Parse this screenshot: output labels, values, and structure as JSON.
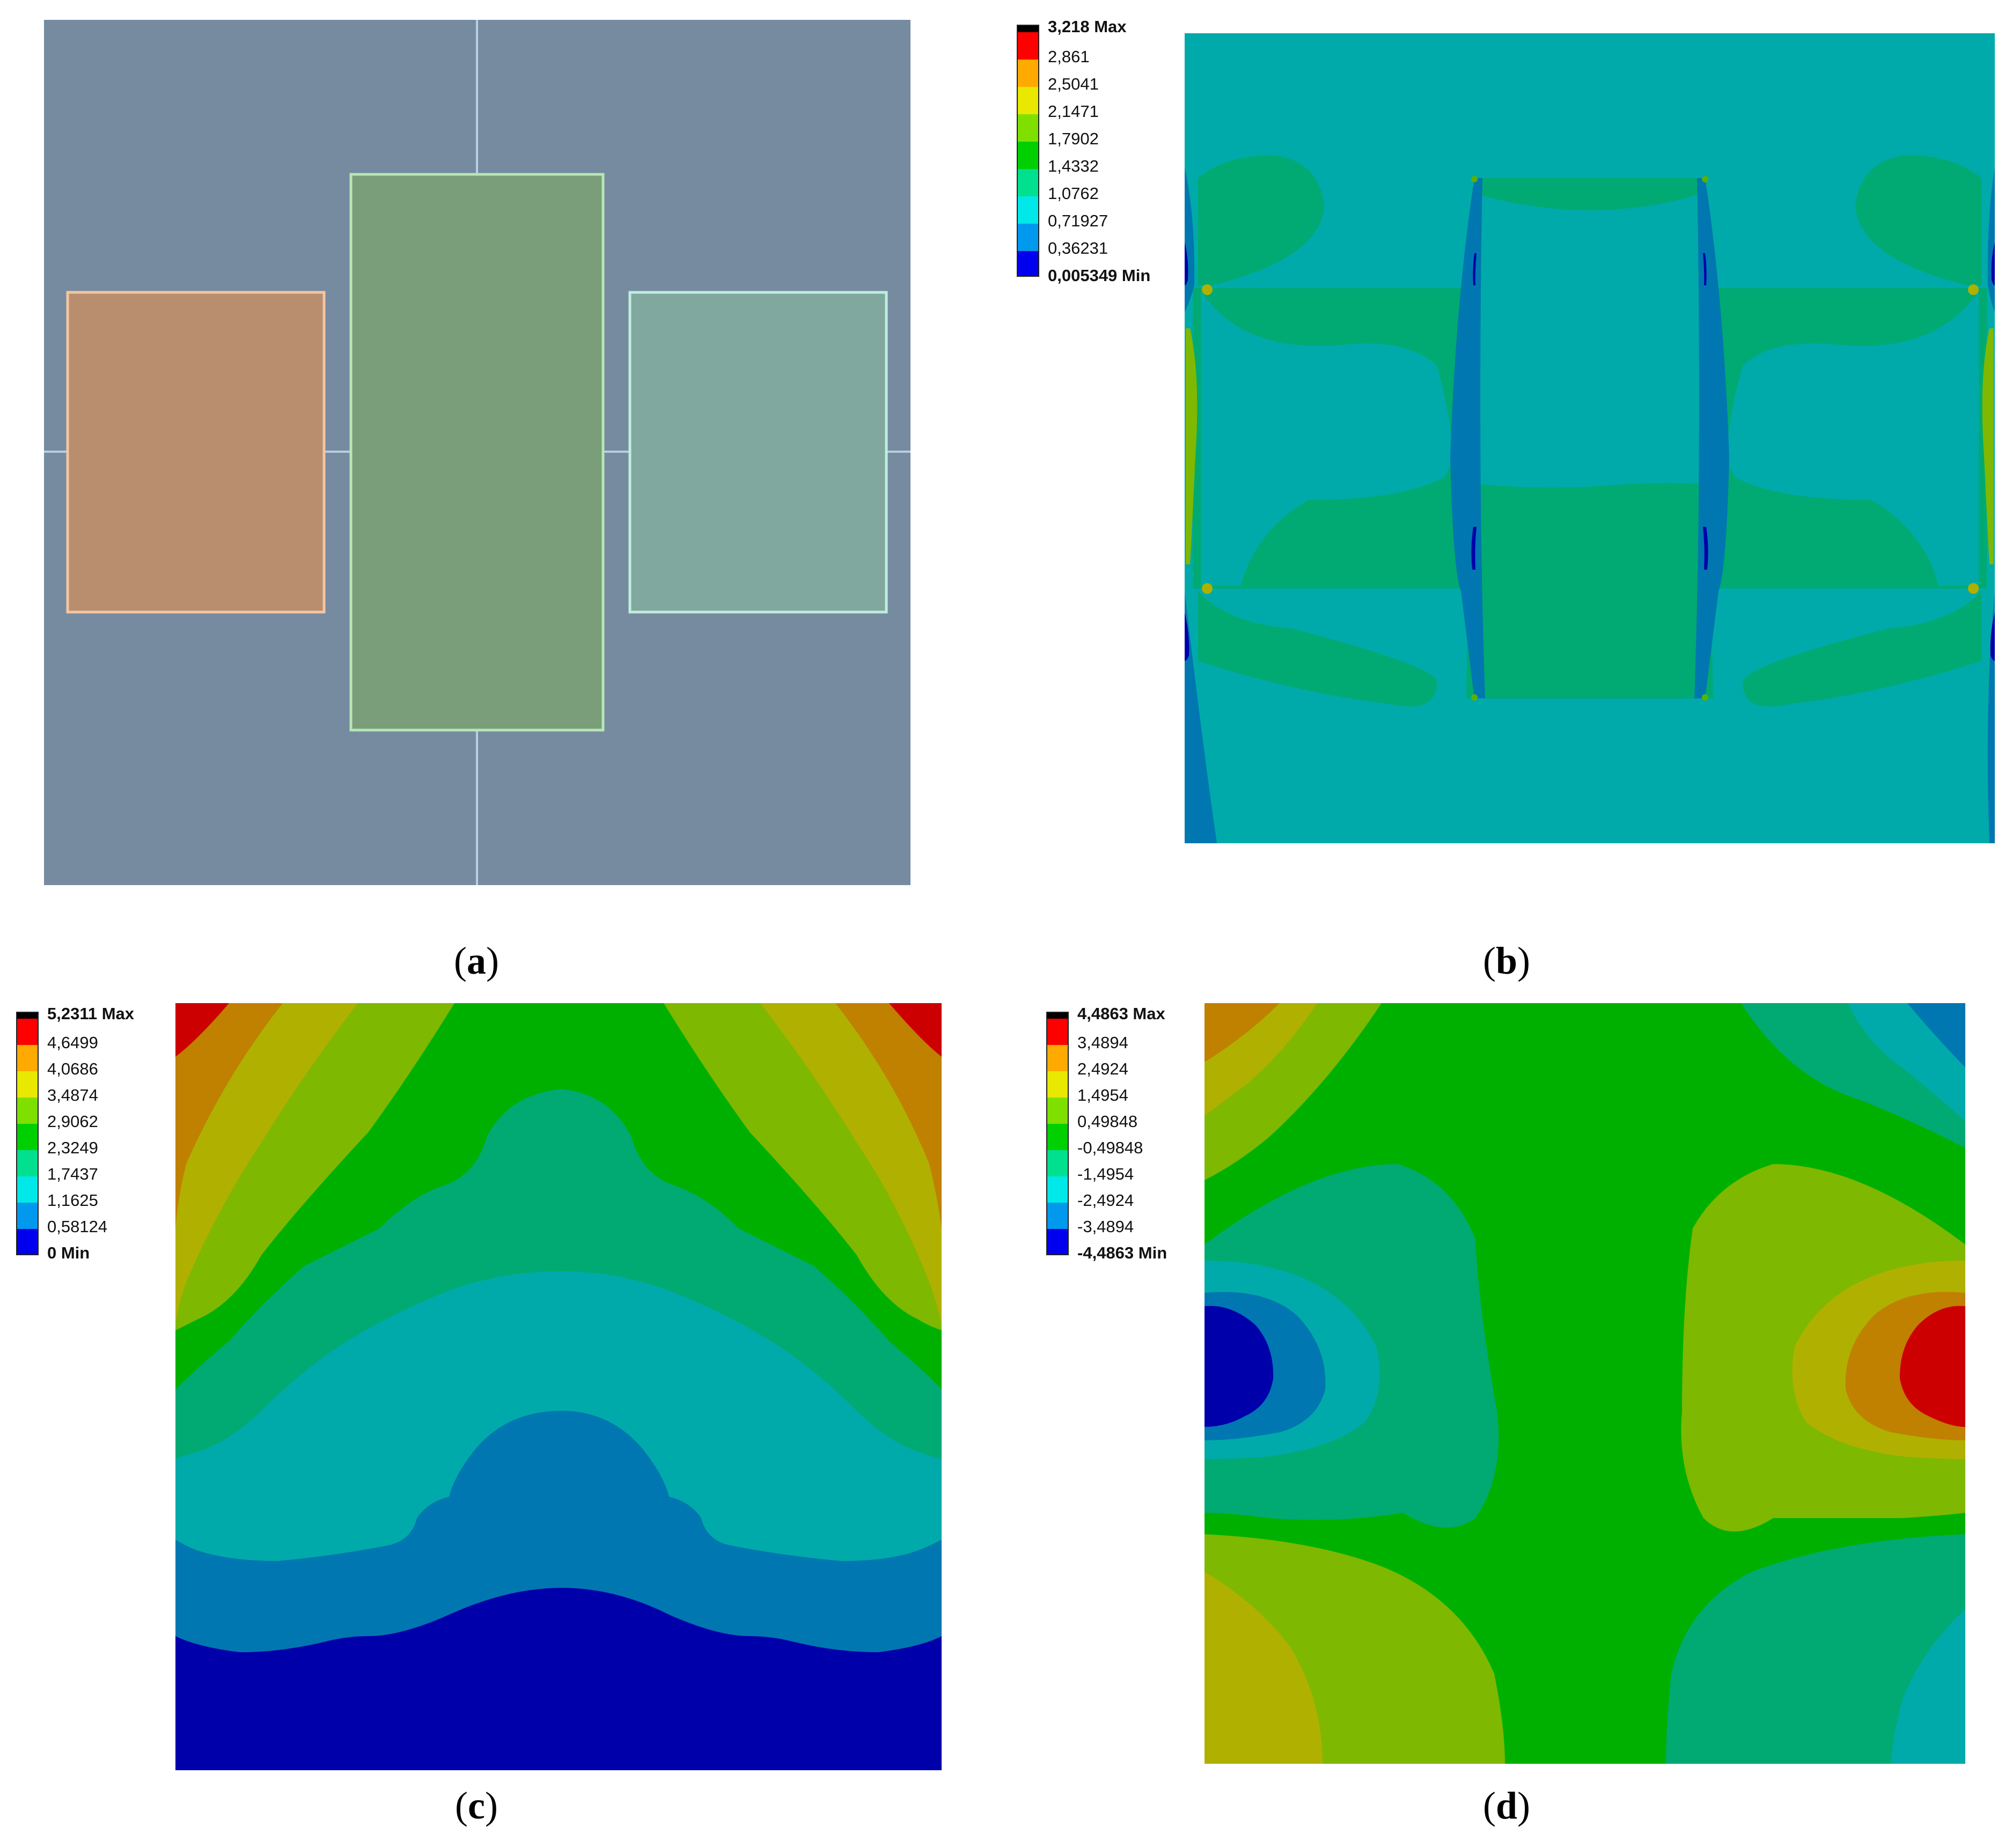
{
  "panels": {
    "a": {
      "caption": "a",
      "colors": {
        "background": "#768ba0",
        "left_block": "#b88e6f",
        "center_block": "#7a9e7a",
        "right_block": "#80a89e",
        "grid_line": "#b5d0df"
      }
    },
    "b": {
      "caption": "b",
      "legend": {
        "max_label": "3,218 Max",
        "values": [
          "2,861",
          "2,5041",
          "2,1471",
          "1,7902",
          "1,4332",
          "1,0762",
          "0,71927",
          "0,36231"
        ],
        "min_label": "0,005349 Min"
      }
    },
    "c": {
      "caption": "c",
      "legend": {
        "max_label": "5,2311 Max",
        "values": [
          "4,6499",
          "4,0686",
          "3,4874",
          "2,9062",
          "2,3249",
          "1,7437",
          "1,1625",
          "0,58124"
        ],
        "min_label": "0 Min"
      }
    },
    "d": {
      "caption": "d",
      "legend": {
        "max_label": "4,4863 Max",
        "values": [
          "3,4894",
          "2,4924",
          "1,4954",
          "0,49848",
          "-0,49848",
          "-1,4954",
          "-2,4924",
          "-3,4894"
        ],
        "min_label": "-4,4863 Min"
      }
    }
  },
  "colormap": [
    "#ff0000",
    "#ffaa00",
    "#e8e800",
    "#7fe000",
    "#00d000",
    "#00e08e",
    "#00e8e8",
    "#0099ee",
    "#0000ee"
  ],
  "contour_colors": {
    "red": "#cc0000",
    "orange": "#c08000",
    "yellow": "#b0b000",
    "yellow_green": "#7fb800",
    "lime": "#5cb000",
    "green": "#00b000",
    "sea_green": "#00aa72",
    "teal": "#00aaaa",
    "steel_blue": "#0077b0",
    "navy": "#0000aa"
  }
}
